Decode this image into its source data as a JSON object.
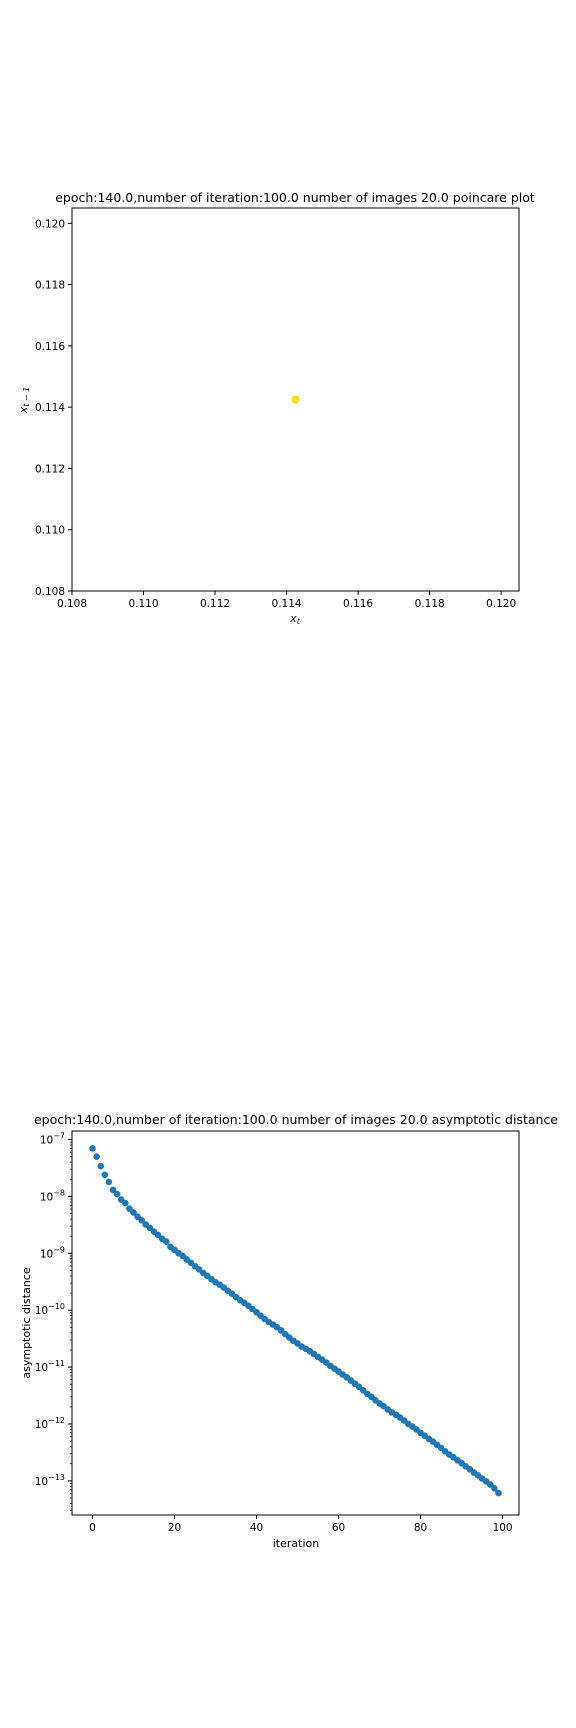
{
  "chart_data": [
    {
      "type": "scatter",
      "title": "epoch:140.0,number of iteration:100.0 number of images 20.0 poincare plot",
      "xlabel": "x_t",
      "ylabel": "x_{t-1}",
      "xlim": [
        0.108,
        0.1205
      ],
      "ylim": [
        0.108,
        0.1205
      ],
      "xticks": [
        "0.108",
        "0.110",
        "0.112",
        "0.114",
        "0.116",
        "0.118",
        "0.120"
      ],
      "yticks": [
        "0.108",
        "0.110",
        "0.112",
        "0.114",
        "0.116",
        "0.118",
        "0.120"
      ],
      "points": [
        {
          "x": 0.11425,
          "y": 0.11425
        }
      ],
      "marker_color": "#f2e61a",
      "grid": false
    },
    {
      "type": "scatter",
      "title": "epoch:140.0,number of iteration:100.0  number of images 20.0 asymptotic distance",
      "xlabel": "iteration",
      "ylabel": "asymptotic distance",
      "xlim": [
        -5,
        104
      ],
      "ylim_log10": [
        -13.6,
        -6.85
      ],
      "yscale": "log",
      "xticks": [
        "0",
        "20",
        "40",
        "60",
        "80",
        "100"
      ],
      "yticks": [
        "10^-7",
        "10^-8",
        "10^-9",
        "10^-10",
        "10^-11",
        "10^-12",
        "10^-13"
      ],
      "marker_color": "#1f77b4",
      "grid": false,
      "series_points": [
        {
          "x": 0,
          "y": 7e-08
        },
        {
          "x": 1,
          "y": 5e-08
        },
        {
          "x": 2,
          "y": 3.4e-08
        },
        {
          "x": 3,
          "y": 2.4e-08
        },
        {
          "x": 4,
          "y": 1.8e-08
        },
        {
          "x": 5,
          "y": 1.3e-08
        },
        {
          "x": 6,
          "y": 1.1e-08
        },
        {
          "x": 7,
          "y": 8.8e-09
        },
        {
          "x": 8,
          "y": 7.6e-09
        },
        {
          "x": 9,
          "y": 6.1e-09
        },
        {
          "x": 10,
          "y": 5.2e-09
        },
        {
          "x": 11,
          "y": 4.4e-09
        },
        {
          "x": 12,
          "y": 3.8e-09
        },
        {
          "x": 13,
          "y": 3.2e-09
        },
        {
          "x": 14,
          "y": 2.8e-09
        },
        {
          "x": 15,
          "y": 2.4e-09
        },
        {
          "x": 16,
          "y": 2.1e-09
        },
        {
          "x": 17,
          "y": 1.8e-09
        },
        {
          "x": 18,
          "y": 1.6e-09
        },
        {
          "x": 19,
          "y": 1.3e-09
        },
        {
          "x": 20,
          "y": 1.15e-09
        },
        {
          "x": 21,
          "y": 1e-09
        },
        {
          "x": 22,
          "y": 9e-10
        },
        {
          "x": 23,
          "y": 7.8e-10
        },
        {
          "x": 24,
          "y": 6.8e-10
        },
        {
          "x": 25,
          "y": 5.9e-10
        },
        {
          "x": 26,
          "y": 5.2e-10
        },
        {
          "x": 27,
          "y": 4.5e-10
        },
        {
          "x": 28,
          "y": 4e-10
        },
        {
          "x": 29,
          "y": 3.5e-10
        },
        {
          "x": 30,
          "y": 3.1e-10
        },
        {
          "x": 31,
          "y": 2.8e-10
        },
        {
          "x": 32,
          "y": 2.5e-10
        },
        {
          "x": 33,
          "y": 2.2e-10
        },
        {
          "x": 34,
          "y": 1.95e-10
        },
        {
          "x": 35,
          "y": 1.7e-10
        },
        {
          "x": 36,
          "y": 1.5e-10
        },
        {
          "x": 37,
          "y": 1.35e-10
        },
        {
          "x": 38,
          "y": 1.2e-10
        },
        {
          "x": 39,
          "y": 1.05e-10
        },
        {
          "x": 40,
          "y": 9.2e-11
        },
        {
          "x": 41,
          "y": 8e-11
        },
        {
          "x": 42,
          "y": 7e-11
        },
        {
          "x": 43,
          "y": 6.2e-11
        },
        {
          "x": 44,
          "y": 5.6e-11
        },
        {
          "x": 45,
          "y": 5e-11
        },
        {
          "x": 46,
          "y": 4.4e-11
        },
        {
          "x": 47,
          "y": 3.8e-11
        },
        {
          "x": 48,
          "y": 3.3e-11
        },
        {
          "x": 49,
          "y": 2.9e-11
        },
        {
          "x": 50,
          "y": 2.6e-11
        },
        {
          "x": 51,
          "y": 2.3e-11
        },
        {
          "x": 52,
          "y": 2.1e-11
        },
        {
          "x": 53,
          "y": 1.9e-11
        },
        {
          "x": 54,
          "y": 1.7e-11
        },
        {
          "x": 55,
          "y": 1.5e-11
        },
        {
          "x": 56,
          "y": 1.35e-11
        },
        {
          "x": 57,
          "y": 1.2e-11
        },
        {
          "x": 58,
          "y": 1.05e-11
        },
        {
          "x": 59,
          "y": 9.4e-12
        },
        {
          "x": 60,
          "y": 8.4e-12
        },
        {
          "x": 61,
          "y": 7.4e-12
        },
        {
          "x": 62,
          "y": 6.6e-12
        },
        {
          "x": 63,
          "y": 5.8e-12
        },
        {
          "x": 64,
          "y": 5.1e-12
        },
        {
          "x": 65,
          "y": 4.5e-12
        },
        {
          "x": 66,
          "y": 3.9e-12
        },
        {
          "x": 67,
          "y": 3.4e-12
        },
        {
          "x": 68,
          "y": 3e-12
        },
        {
          "x": 69,
          "y": 2.6e-12
        },
        {
          "x": 70,
          "y": 2.3e-12
        },
        {
          "x": 71,
          "y": 2.05e-12
        },
        {
          "x": 72,
          "y": 1.8e-12
        },
        {
          "x": 73,
          "y": 1.6e-12
        },
        {
          "x": 74,
          "y": 1.45e-12
        },
        {
          "x": 75,
          "y": 1.3e-12
        },
        {
          "x": 76,
          "y": 1.15e-12
        },
        {
          "x": 77,
          "y": 1e-12
        },
        {
          "x": 78,
          "y": 9e-13
        },
        {
          "x": 79,
          "y": 8e-13
        },
        {
          "x": 80,
          "y": 7e-13
        },
        {
          "x": 81,
          "y": 6.2e-13
        },
        {
          "x": 82,
          "y": 5.5e-13
        },
        {
          "x": 83,
          "y": 4.9e-13
        },
        {
          "x": 84,
          "y": 4.3e-13
        },
        {
          "x": 85,
          "y": 3.8e-13
        },
        {
          "x": 86,
          "y": 3.3e-13
        },
        {
          "x": 87,
          "y": 2.9e-13
        },
        {
          "x": 88,
          "y": 2.6e-13
        },
        {
          "x": 89,
          "y": 2.3e-13
        },
        {
          "x": 90,
          "y": 2.05e-13
        },
        {
          "x": 91,
          "y": 1.8e-13
        },
        {
          "x": 92,
          "y": 1.6e-13
        },
        {
          "x": 93,
          "y": 1.4e-13
        },
        {
          "x": 94,
          "y": 1.25e-13
        },
        {
          "x": 95,
          "y": 1.1e-13
        },
        {
          "x": 96,
          "y": 9.8e-14
        },
        {
          "x": 97,
          "y": 8.6e-14
        },
        {
          "x": 98,
          "y": 7.4e-14
        },
        {
          "x": 99,
          "y": 6.1e-14
        }
      ]
    }
  ]
}
